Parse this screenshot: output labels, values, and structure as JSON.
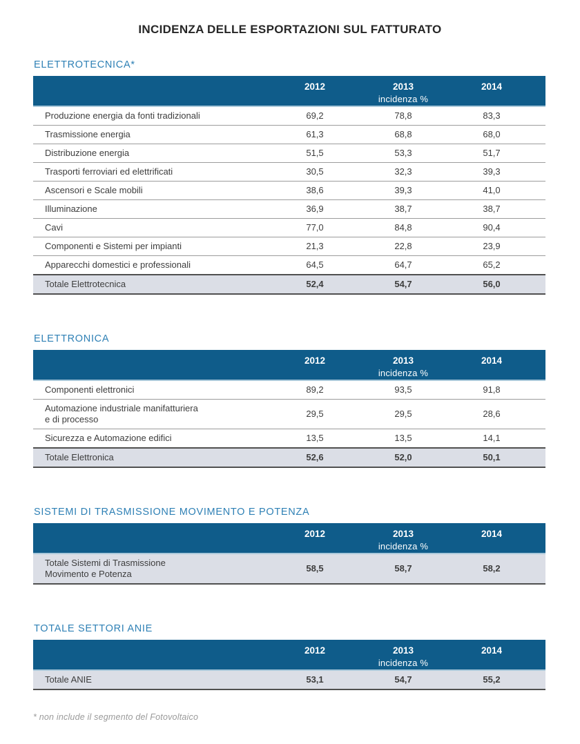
{
  "page": {
    "title": "INCIDENZA DELLE ESPORTAZIONI SUL FATTURATO",
    "footnote": "* non include il segmento del Fotovoltaico"
  },
  "table_header": {
    "years": [
      "2012",
      "2013",
      "2014"
    ],
    "subtitle": "incidenza %"
  },
  "colors": {
    "band_blue": "#0f5c8a",
    "band_bottom_edge": "#a9c8da",
    "section_title_blue": "#2e80b5",
    "total_row_bg": "#dbdee6",
    "row_line_gray": "#9b9b9b",
    "total_line_dark": "#4f4f4f",
    "body_text": "#3d3d3d",
    "footnote_gray": "#9a9a9a"
  },
  "sections": [
    {
      "title": "ELETTROTECNICA*",
      "rows": [
        {
          "label_lines": [
            "Produzione energia da fonti tradizionali"
          ],
          "values": [
            "69,2",
            "78,8",
            "83,3"
          ],
          "total": false
        },
        {
          "label_lines": [
            "Trasmissione energia"
          ],
          "values": [
            "61,3",
            "68,8",
            "68,0"
          ],
          "total": false
        },
        {
          "label_lines": [
            "Distribuzione energia"
          ],
          "values": [
            "51,5",
            "53,3",
            "51,7"
          ],
          "total": false
        },
        {
          "label_lines": [
            "Trasporti ferroviari ed elettrificati"
          ],
          "values": [
            "30,5",
            "32,3",
            "39,3"
          ],
          "total": false
        },
        {
          "label_lines": [
            "Ascensori e Scale mobili"
          ],
          "values": [
            "38,6",
            "39,3",
            "41,0"
          ],
          "total": false
        },
        {
          "label_lines": [
            "Illuminazione"
          ],
          "values": [
            "36,9",
            "38,7",
            "38,7"
          ],
          "total": false
        },
        {
          "label_lines": [
            "Cavi"
          ],
          "values": [
            "77,0",
            "84,8",
            "90,4"
          ],
          "total": false
        },
        {
          "label_lines": [
            "Componenti e Sistemi per impianti"
          ],
          "values": [
            "21,3",
            "22,8",
            "23,9"
          ],
          "total": false
        },
        {
          "label_lines": [
            "Apparecchi domestici e professionali"
          ],
          "values": [
            "64,5",
            "64,7",
            "65,2"
          ],
          "total": false
        },
        {
          "label_lines": [
            "Totale Elettrotecnica"
          ],
          "values": [
            "52,4",
            "54,7",
            "56,0"
          ],
          "total": true
        }
      ]
    },
    {
      "title": "ELETTRONICA",
      "rows": [
        {
          "label_lines": [
            "Componenti elettronici"
          ],
          "values": [
            "89,2",
            "93,5",
            "91,8"
          ],
          "total": false
        },
        {
          "label_lines": [
            "Automazione industriale manifatturiera",
            "e di processo"
          ],
          "values": [
            "29,5",
            "29,5",
            "28,6"
          ],
          "total": false
        },
        {
          "label_lines": [
            "Sicurezza e Automazione edifici"
          ],
          "values": [
            "13,5",
            "13,5",
            "14,1"
          ],
          "total": false
        },
        {
          "label_lines": [
            "Totale Elettronica"
          ],
          "values": [
            "52,6",
            "52,0",
            "50,1"
          ],
          "total": true
        }
      ]
    },
    {
      "title": "SISTEMI DI TRASMISSIONE MOVIMENTO E POTENZA",
      "rows": [
        {
          "label_lines": [
            "Totale Sistemi di Trasmissione",
            "Movimento e Potenza"
          ],
          "values": [
            "58,5",
            "58,7",
            "58,2"
          ],
          "total": true
        }
      ]
    },
    {
      "title": "TOTALE SETTORI ANIE",
      "rows": [
        {
          "label_lines": [
            "Totale ANIE"
          ],
          "values": [
            "53,1",
            "54,7",
            "55,2"
          ],
          "total": true
        }
      ]
    }
  ]
}
